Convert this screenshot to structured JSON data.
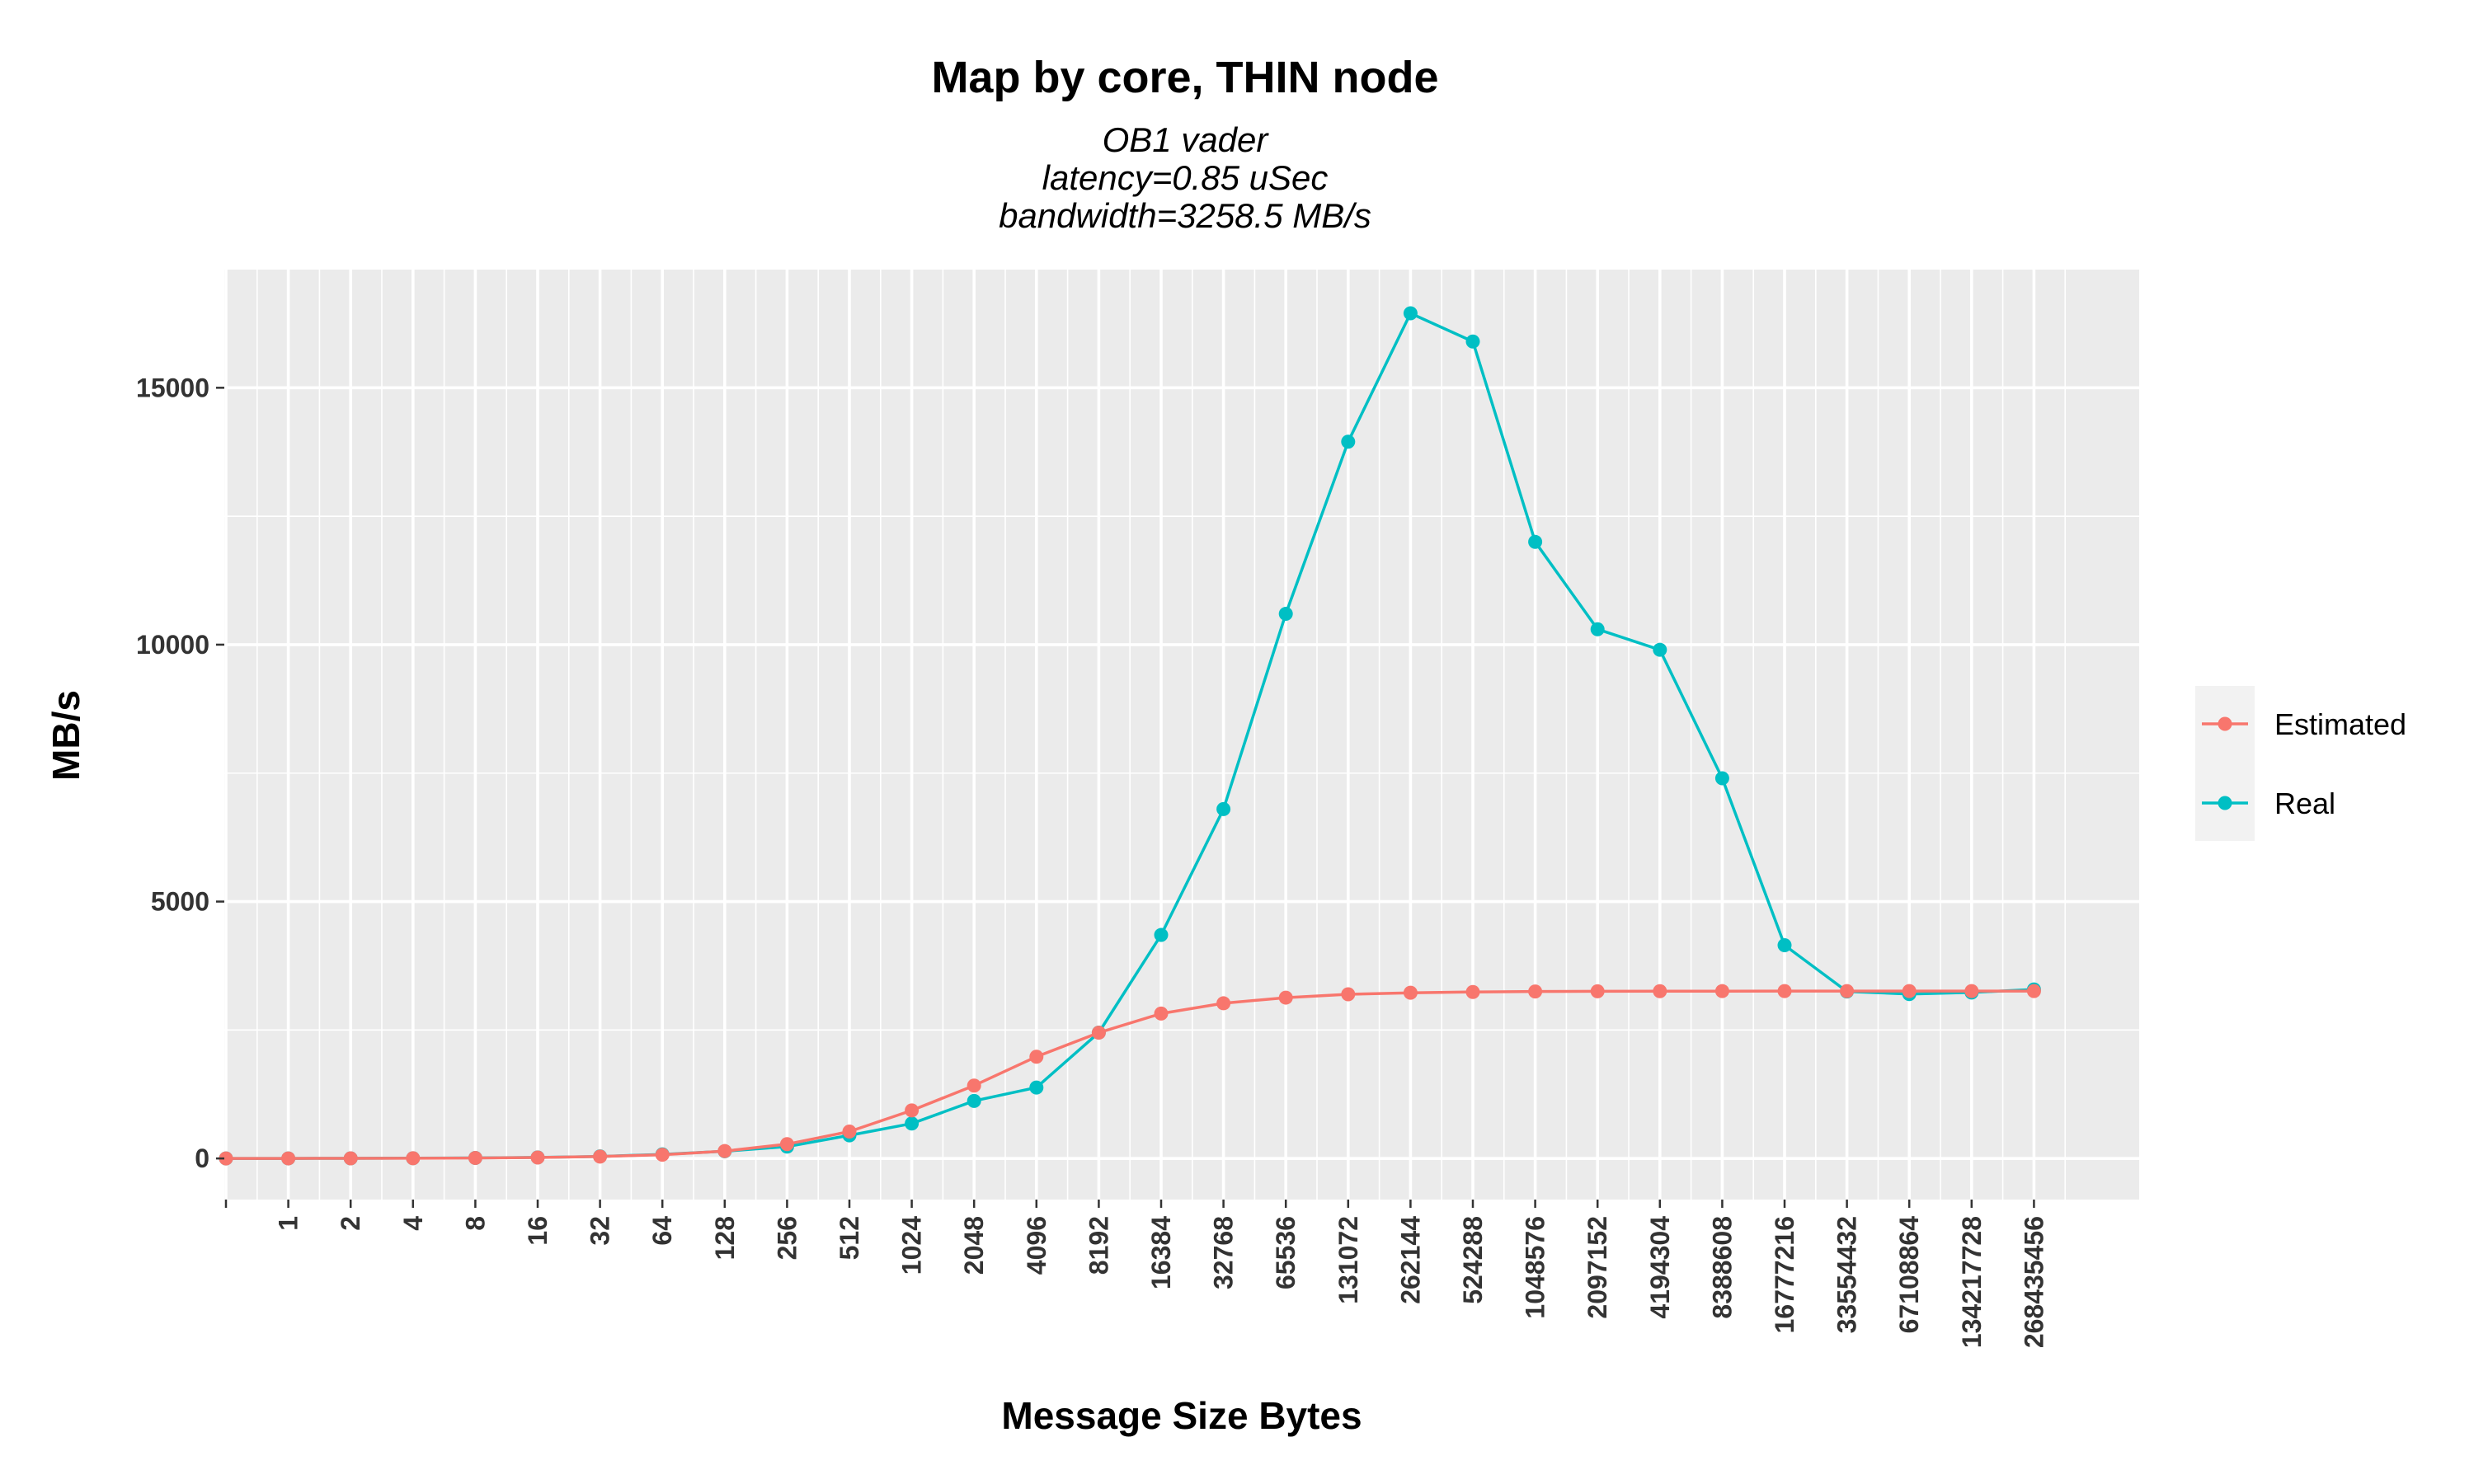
{
  "chart_data": {
    "type": "line",
    "title": "Map by core, THIN node",
    "subtitle_lines": [
      "OB1 vader",
      "latency=0.85 uSec",
      "bandwidth=3258.5 MB/s"
    ],
    "xlabel": "Message Size Bytes",
    "ylabel": "MB/s",
    "x": [
      "0",
      "1",
      "2",
      "4",
      "8",
      "16",
      "32",
      "64",
      "128",
      "256",
      "512",
      "1024",
      "2048",
      "4096",
      "8192",
      "16384",
      "32768",
      "65536",
      "131072",
      "262144",
      "524288",
      "1048576",
      "2097152",
      "4194304",
      "8388608",
      "16777216",
      "33554432",
      "67108864",
      "134217728",
      "268435456"
    ],
    "x_tick_labels": [
      "",
      "1",
      "2",
      "4",
      "8",
      "16",
      "32",
      "64",
      "128",
      "256",
      "512",
      "1024",
      "2048",
      "4096",
      "8192",
      "16384",
      "32768",
      "65536",
      "131072",
      "262144",
      "524288",
      "1048576",
      "2097152",
      "4194304",
      "8388608",
      "16777216",
      "33554432",
      "67108864",
      "134217728",
      "268435456"
    ],
    "y_ticks": [
      0,
      5000,
      10000,
      15000
    ],
    "ylim": [
      -800,
      17300
    ],
    "grid": true,
    "legend_position": "right",
    "series": [
      {
        "name": "Estimated",
        "color": "#F8766D",
        "values": [
          0,
          1.2,
          2.4,
          4.7,
          9.4,
          19,
          37,
          73,
          144,
          279,
          524,
          935,
          1419,
          1980,
          2448,
          2820,
          3020,
          3130,
          3195,
          3225,
          3240,
          3250,
          3254,
          3256,
          3257,
          3258,
          3258,
          3258,
          3258,
          3258
        ]
      },
      {
        "name": "Real",
        "color": "#00BFC4",
        "values": [
          0,
          1,
          2,
          5,
          10,
          20,
          40,
          80,
          140,
          230,
          450,
          680,
          1120,
          1380,
          2450,
          4350,
          6800,
          10600,
          13950,
          16450,
          15900,
          12000,
          10300,
          9900,
          7400,
          4150,
          3250,
          3200,
          3230,
          3290
        ]
      }
    ]
  }
}
